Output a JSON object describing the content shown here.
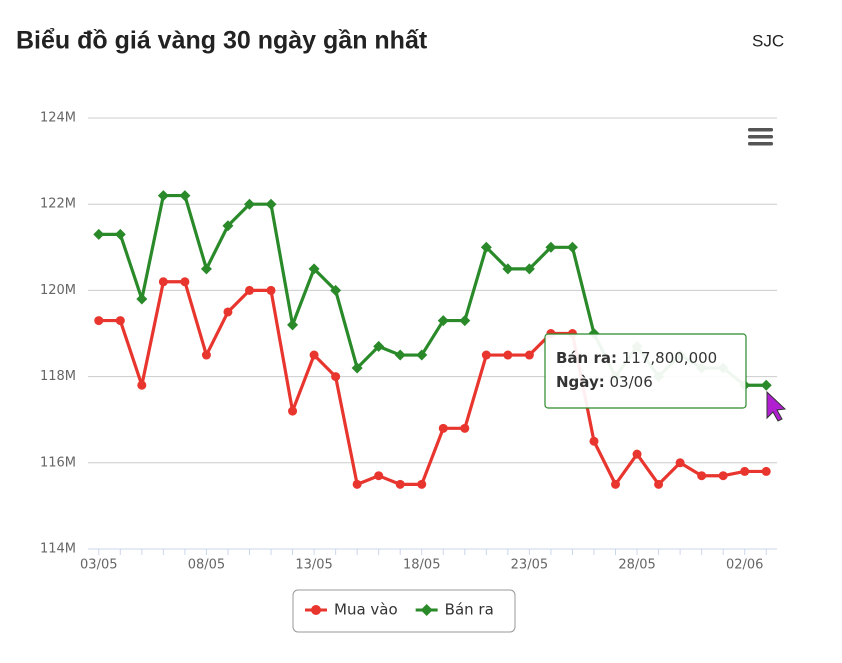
{
  "chart_data": {
    "type": "line",
    "title": "Biểu đồ giá vàng 30 ngày gần nhất",
    "subtitle": "SJC",
    "categories": [
      "03/05",
      null,
      null,
      null,
      null,
      "08/05",
      null,
      null,
      null,
      null,
      "13/05",
      null,
      null,
      null,
      null,
      "18/05",
      null,
      null,
      null,
      null,
      "23/05",
      null,
      null,
      null,
      null,
      "28/05",
      null,
      null,
      null,
      null,
      "02/06",
      null
    ],
    "series": [
      {
        "name": "Mua vào",
        "color": "#e8352e",
        "values": [
          119.3,
          119.3,
          117.8,
          120.2,
          120.2,
          118.5,
          119.5,
          120.0,
          120.0,
          117.2,
          118.5,
          118.0,
          115.5,
          115.7,
          115.5,
          115.5,
          116.8,
          116.8,
          118.5,
          118.5,
          118.5,
          119.0,
          119.0,
          116.5,
          115.5,
          116.2,
          115.5,
          116.0,
          115.7,
          115.7,
          115.8,
          115.8
        ]
      },
      {
        "name": "Bán ra",
        "color": "#2a8a2a",
        "values": [
          121.3,
          121.3,
          119.8,
          122.2,
          122.2,
          120.5,
          121.5,
          122.0,
          122.0,
          119.2,
          120.5,
          120.0,
          118.2,
          118.7,
          118.5,
          118.5,
          119.3,
          119.3,
          121.0,
          120.5,
          120.5,
          121.0,
          121.0,
          119.0,
          118.0,
          118.7,
          118.0,
          118.5,
          118.2,
          118.2,
          117.8,
          117.8
        ]
      }
    ],
    "ylim": [
      114,
      124
    ],
    "yticks": [
      {
        "value": 114,
        "label": "114M"
      },
      {
        "value": 116,
        "label": "116M"
      },
      {
        "value": 118,
        "label": "118M"
      },
      {
        "value": 120,
        "label": "120M"
      },
      {
        "value": 122,
        "label": "122M"
      },
      {
        "value": 124,
        "label": "124M"
      }
    ],
    "grid": true,
    "tooltip": {
      "series_label": "Bán ra:",
      "value": "117,800,000",
      "date_label": "Ngày:",
      "date": "03/06"
    }
  }
}
